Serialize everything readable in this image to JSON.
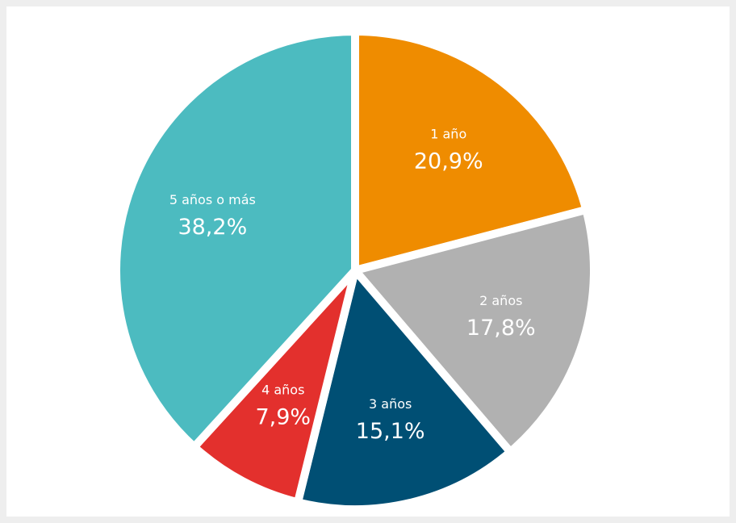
{
  "chart_data": {
    "type": "pie",
    "categories": [
      "1 año",
      "2 años",
      "3 años",
      "4 años",
      "5 años o más"
    ],
    "values": [
      20.9,
      17.8,
      15.1,
      7.9,
      38.2
    ],
    "value_labels": [
      "20,9%",
      "17,8%",
      "15,1%",
      "7,9%",
      "38,2%"
    ],
    "colors": [
      "#ef8c00",
      "#b1b1b1",
      "#004f74",
      "#e3302d",
      "#4cbbc0"
    ]
  }
}
